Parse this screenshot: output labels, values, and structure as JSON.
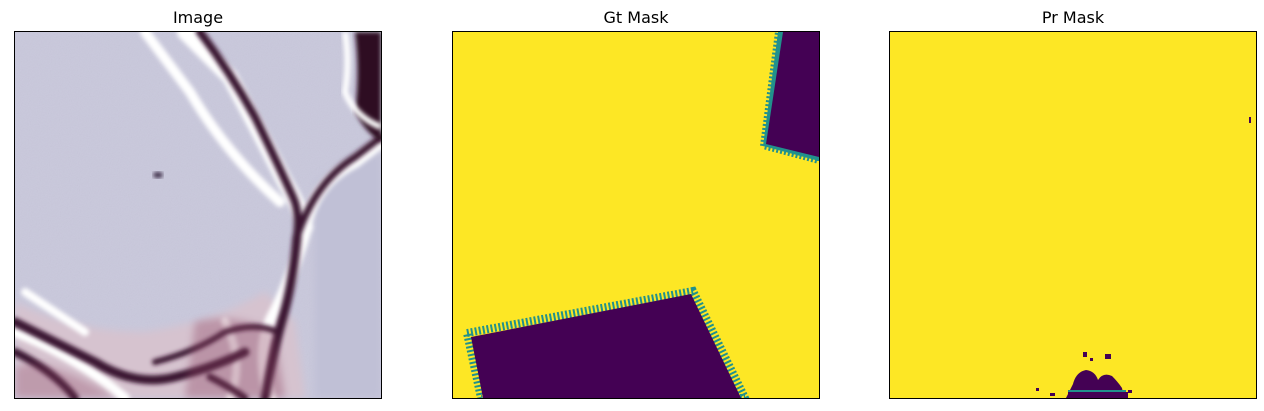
{
  "figure": {
    "panels": [
      {
        "title": "Image"
      },
      {
        "title": "Gt Mask"
      },
      {
        "title": "Pr Mask"
      }
    ]
  },
  "colors": {
    "mask_foreground": "#fde725",
    "mask_background": "#440154",
    "mask_edge": "#21918c",
    "image_base": "#c7c6db",
    "crack_dark": "#3a1530",
    "crack_light": "#ffffff"
  }
}
